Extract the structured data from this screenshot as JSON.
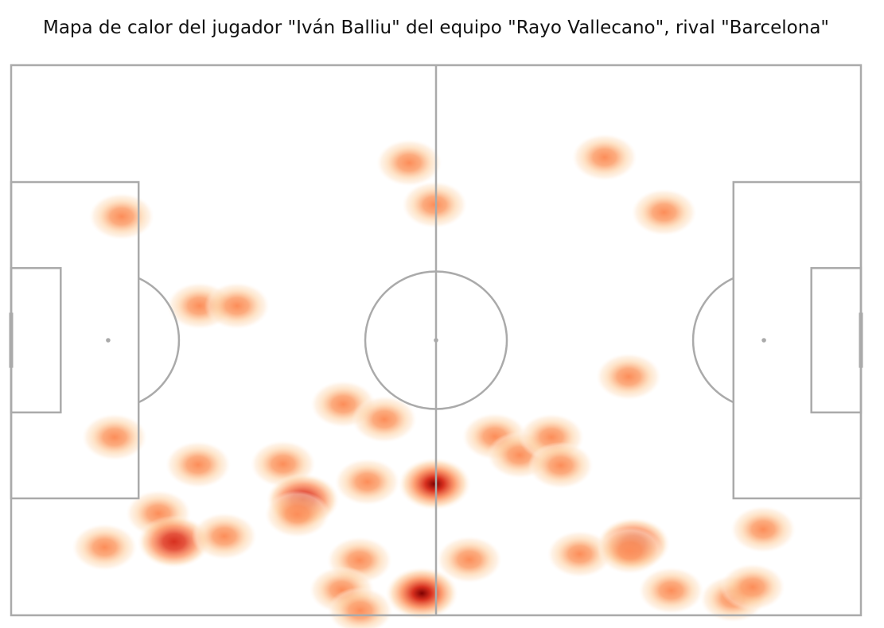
{
  "chart_data": {
    "type": "heatmap",
    "title": "Mapa de calor del jugador \"Iván Balliu\" del equipo \"Rayo Vallecano\", rival \"Barcelona\"",
    "pitch": {
      "length": 120,
      "width": 80,
      "line_color": "#aaaaaa"
    },
    "colormap": [
      "#fff5eb",
      "#fdd0a2",
      "#fc8d59",
      "#d7301f",
      "#7f0000"
    ],
    "grid": false,
    "points": [
      {
        "x": 56.2,
        "y": 14.2,
        "w": 0.75
      },
      {
        "x": 59.8,
        "y": 20.3,
        "w": 0.75
      },
      {
        "x": 83.8,
        "y": 13.4,
        "w": 0.75
      },
      {
        "x": 92.2,
        "y": 21.4,
        "w": 0.75
      },
      {
        "x": 15.6,
        "y": 22.0,
        "w": 0.75
      },
      {
        "x": 26.6,
        "y": 35.0,
        "w": 0.8
      },
      {
        "x": 31.9,
        "y": 35.0,
        "w": 0.8
      },
      {
        "x": 87.2,
        "y": 45.3,
        "w": 0.75
      },
      {
        "x": 46.9,
        "y": 49.3,
        "w": 0.8
      },
      {
        "x": 52.7,
        "y": 51.5,
        "w": 0.8
      },
      {
        "x": 14.6,
        "y": 54.1,
        "w": 0.75
      },
      {
        "x": 68.3,
        "y": 54.0,
        "w": 0.85
      },
      {
        "x": 71.8,
        "y": 56.7,
        "w": 0.9
      },
      {
        "x": 76.3,
        "y": 54.1,
        "w": 0.85
      },
      {
        "x": 77.6,
        "y": 58.2,
        "w": 0.85
      },
      {
        "x": 26.4,
        "y": 58.1,
        "w": 0.75
      },
      {
        "x": 38.4,
        "y": 58.0,
        "w": 0.75
      },
      {
        "x": 50.3,
        "y": 60.6,
        "w": 0.8
      },
      {
        "x": 59.8,
        "y": 60.9,
        "w": 1.6
      },
      {
        "x": 41.2,
        "y": 63.2,
        "w": 1.15
      },
      {
        "x": 40.4,
        "y": 65.3,
        "w": 0.8
      },
      {
        "x": 20.8,
        "y": 65.2,
        "w": 0.85
      },
      {
        "x": 23.0,
        "y": 69.3,
        "w": 1.3
      },
      {
        "x": 30.1,
        "y": 68.5,
        "w": 0.8
      },
      {
        "x": 13.2,
        "y": 70.1,
        "w": 0.75
      },
      {
        "x": 106.2,
        "y": 67.5,
        "w": 0.75
      },
      {
        "x": 49.2,
        "y": 72.0,
        "w": 0.85
      },
      {
        "x": 64.7,
        "y": 71.9,
        "w": 0.8
      },
      {
        "x": 80.3,
        "y": 71.1,
        "w": 0.8
      },
      {
        "x": 87.9,
        "y": 69.6,
        "w": 1.15
      },
      {
        "x": 87.4,
        "y": 70.6,
        "w": 0.6
      },
      {
        "x": 46.7,
        "y": 76.3,
        "w": 0.8
      },
      {
        "x": 58.0,
        "y": 76.8,
        "w": 1.6
      },
      {
        "x": 93.2,
        "y": 76.4,
        "w": 0.8
      },
      {
        "x": 101.9,
        "y": 77.6,
        "w": 0.9
      },
      {
        "x": 104.7,
        "y": 75.9,
        "w": 0.8
      },
      {
        "x": 49.3,
        "y": 79.3,
        "w": 0.75
      }
    ]
  }
}
